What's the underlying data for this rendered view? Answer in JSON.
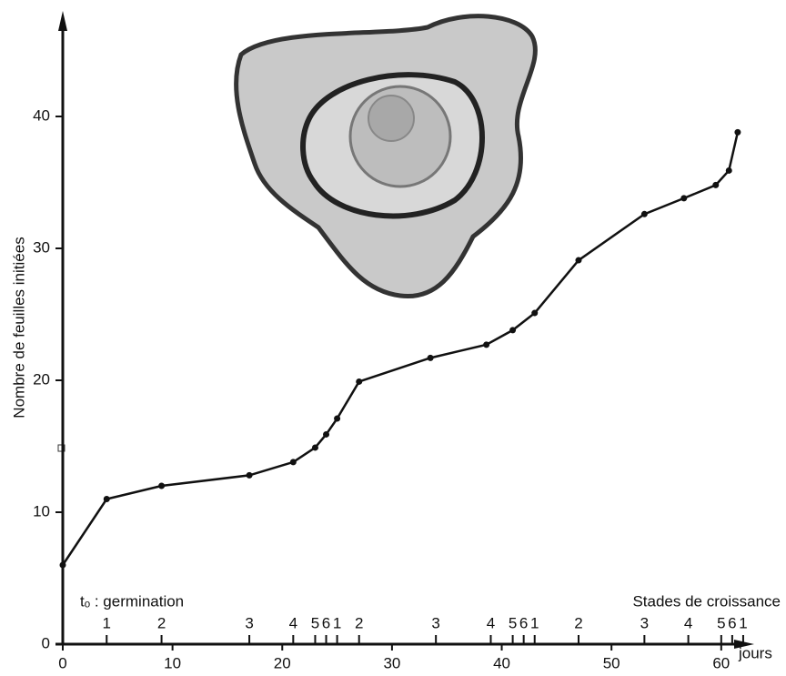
{
  "chart_data": {
    "type": "line",
    "ylabel": "Nombre de feuilles initiées",
    "xlabel": "jours",
    "annotations": {
      "start": "tₒ : germination",
      "stages_title": "Stades de croissance"
    },
    "x": [
      0,
      4,
      9,
      17,
      21,
      23,
      24,
      25,
      27,
      33.5,
      38.6,
      41,
      43,
      47,
      53,
      56.6,
      59.5,
      60.7,
      61.5
    ],
    "series": [
      {
        "color": "#111111",
        "values": [
          6,
          11,
          12,
          12.8,
          13.8,
          14.9,
          15.9,
          17.1,
          19.9,
          21.7,
          22.7,
          23.8,
          25.1,
          29.1,
          32.6,
          33.8,
          34.8,
          35.9,
          38.8
        ]
      }
    ],
    "stage_markers": [
      {
        "label": "1",
        "x": 4
      },
      {
        "label": "2",
        "x": 9
      },
      {
        "label": "3",
        "x": 17
      },
      {
        "label": "4",
        "x": 21
      },
      {
        "label": "5",
        "x": 23
      },
      {
        "label": "6",
        "x": 24
      },
      {
        "label": "1",
        "x": 25
      },
      {
        "label": "2",
        "x": 27
      },
      {
        "label": "3",
        "x": 34
      },
      {
        "label": "4",
        "x": 39
      },
      {
        "label": "5",
        "x": 41
      },
      {
        "label": "6",
        "x": 42
      },
      {
        "label": "1",
        "x": 43
      },
      {
        "label": "2",
        "x": 47
      },
      {
        "label": "3",
        "x": 53
      },
      {
        "label": "4",
        "x": 57
      },
      {
        "label": "5",
        "x": 60
      },
      {
        "label": "6",
        "x": 61
      },
      {
        "label": "1",
        "x": 62
      }
    ],
    "xlim": [
      0,
      63
    ],
    "xticks": [
      0,
      10,
      20,
      30,
      40,
      50,
      60
    ],
    "ylim": [
      0,
      48
    ],
    "yticks": [
      0,
      10,
      20,
      30,
      40
    ],
    "grid": false
  }
}
